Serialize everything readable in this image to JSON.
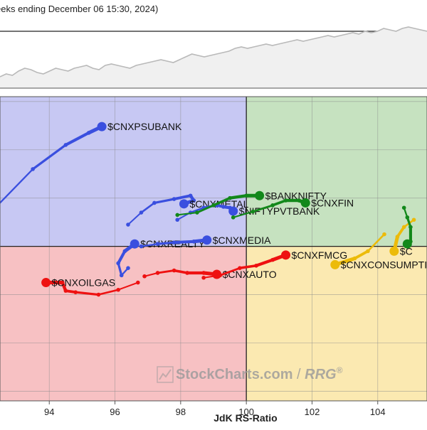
{
  "header": {
    "subtitle": "eeks ending December 06 15:30, 2024)"
  },
  "watermark": {
    "brand": "StockCharts.com",
    "separator": " / ",
    "product": "RRG",
    "mark": "®"
  },
  "colors": {
    "leading_bg": "#c6e2c0",
    "weakening_bg": "#fbe9b1",
    "lagging_bg": "#f7c1c3",
    "improving_bg": "#c7c8f3",
    "blue": "#3a4fdf",
    "green": "#12881a",
    "red": "#ee1111",
    "yellow": "#ecbb0a",
    "benchmark_line": "#b9b9b9"
  },
  "chart_data": {
    "type": "scatter",
    "xlabel": "JdK RS-Ratio",
    "ylabel": "",
    "xlim": [
      92.5,
      105.5
    ],
    "ylim": [
      96.8,
      103.1
    ],
    "center": [
      100,
      100
    ],
    "xticks": [
      94,
      96,
      98,
      100,
      102,
      104
    ],
    "grid": true,
    "benchmark_panel": {
      "type": "line",
      "values": [
        72,
        74,
        73,
        76,
        78,
        77,
        75,
        74,
        76,
        78,
        77,
        76,
        78,
        79,
        80,
        78,
        77,
        80,
        81,
        80,
        79,
        78,
        80,
        81,
        82,
        83,
        84,
        83,
        82,
        84,
        86,
        88,
        87,
        86,
        87,
        88,
        89,
        90,
        92,
        93,
        92,
        93,
        94,
        95,
        94,
        95,
        96,
        97,
        98,
        97,
        98,
        99,
        100,
        101,
        100,
        101,
        102,
        103,
        102,
        104,
        103,
        104,
        106,
        105,
        104,
        106,
        107,
        106,
        105,
        104
      ]
    },
    "series": [
      {
        "name": "$CNXPSUBANK",
        "color": "blue",
        "x": [
          92.5,
          93.5,
          94.5,
          95.2,
          95.6
        ],
        "y": [
          100.9,
          101.6,
          102.1,
          102.35,
          102.48
        ]
      },
      {
        "name": "$CNXMETAL",
        "color": "blue",
        "x": [
          96.4,
          96.8,
          97.2,
          97.8,
          98.3,
          98.4,
          98.1
        ],
        "y": [
          100.45,
          100.7,
          100.9,
          100.98,
          101.05,
          100.95,
          100.88
        ]
      },
      {
        "name": "$NIFTYPVTBANK",
        "color": "blue",
        "x": [
          97.9,
          98.3,
          98.7,
          99.1,
          99.3,
          99.5,
          99.6
        ],
        "y": [
          100.55,
          100.7,
          100.8,
          100.85,
          100.82,
          100.8,
          100.73
        ]
      },
      {
        "name": "$CNXREALTY",
        "color": "blue",
        "x": [
          96.4,
          96.2,
          96.1,
          96.3,
          96.6
        ],
        "y": [
          99.55,
          99.4,
          99.65,
          99.9,
          100.05
        ]
      },
      {
        "name": "$CNXMEDIA",
        "color": "blue",
        "x": [
          96.8,
          97.3,
          97.8,
          98.4,
          98.8
        ],
        "y": [
          100.0,
          100.05,
          100.08,
          100.1,
          100.13
        ]
      },
      {
        "name": "$BANKNIFTY",
        "color": "green",
        "x": [
          97.9,
          98.5,
          99.0,
          99.5,
          100.0,
          100.4
        ],
        "y": [
          100.65,
          100.7,
          100.85,
          101.0,
          101.05,
          101.05
        ]
      },
      {
        "name": "$CNXFIN",
        "color": "green",
        "x": [
          99.6,
          100.2,
          100.8,
          101.2,
          101.6,
          101.8
        ],
        "y": [
          100.6,
          100.72,
          100.85,
          100.95,
          100.95,
          100.9
        ]
      },
      {
        "name": "$CNXAUTO",
        "color": "red",
        "x": [
          96.9,
          97.3,
          97.8,
          98.2,
          98.7,
          99.1
        ],
        "y": [
          99.38,
          99.45,
          99.5,
          99.45,
          99.45,
          99.42
        ]
      },
      {
        "name": "$CNXFMCG",
        "color": "red",
        "x": [
          98.7,
          99.2,
          99.8,
          100.3,
          100.8,
          101.2
        ],
        "y": [
          99.35,
          99.4,
          99.55,
          99.6,
          99.72,
          99.82
        ]
      },
      {
        "name": "$CNXOILGAS",
        "color": "red",
        "x": [
          96.7,
          96.1,
          95.5,
          94.8,
          94.5,
          94.4,
          93.9
        ],
        "y": [
          99.25,
          99.1,
          99.0,
          99.05,
          99.08,
          99.25,
          99.25
        ]
      },
      {
        "name": "$CNXCONSUMPTION",
        "color": "yellow",
        "x": [
          104.2,
          103.7,
          103.3,
          102.7
        ],
        "y": [
          100.25,
          99.9,
          99.75,
          99.62
        ]
      },
      {
        "name": "$C",
        "color": "yellow",
        "x": [
          105.1,
          104.8,
          104.6,
          104.5
        ],
        "y": [
          100.55,
          100.4,
          100.2,
          99.9
        ]
      },
      {
        "name": "",
        "color": "green",
        "x": [
          104.8,
          104.9,
          105.0,
          105.0,
          104.9
        ],
        "y": [
          100.8,
          100.6,
          100.4,
          100.1,
          100.05
        ]
      }
    ]
  }
}
